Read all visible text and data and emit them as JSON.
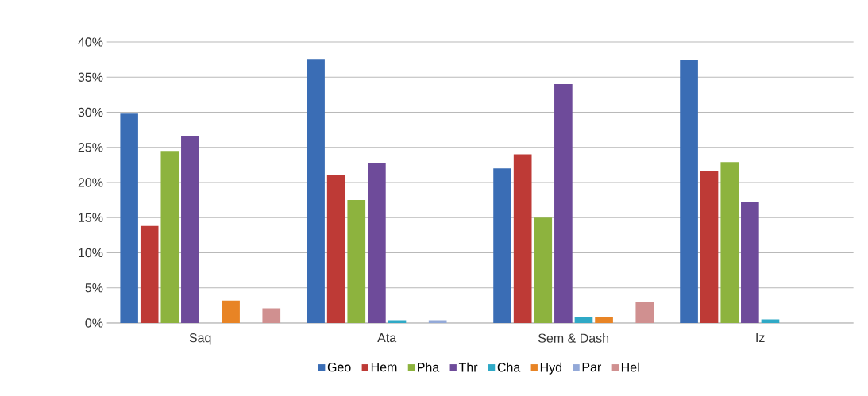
{
  "chart_data": {
    "type": "bar",
    "categories": [
      "Saq",
      "Ata",
      "Sem & Dash",
      "Iz"
    ],
    "series": [
      {
        "name": "Geo",
        "color": "#3a6db5",
        "values": [
          29.8,
          37.6,
          22.0,
          37.5
        ]
      },
      {
        "name": "Hem",
        "color": "#be3a36",
        "values": [
          13.8,
          21.1,
          24.0,
          21.7
        ]
      },
      {
        "name": "Pha",
        "color": "#8db33e",
        "values": [
          24.5,
          17.5,
          15.0,
          22.9
        ]
      },
      {
        "name": "Thr",
        "color": "#6e4b9a",
        "values": [
          26.6,
          22.7,
          34.0,
          17.2
        ]
      },
      {
        "name": "Cha",
        "color": "#2fa9c6",
        "values": [
          0,
          0.4,
          0.9,
          0.5
        ]
      },
      {
        "name": "Hyd",
        "color": "#e88425",
        "values": [
          3.2,
          0,
          0.9,
          0
        ]
      },
      {
        "name": "Par",
        "color": "#93a9d8",
        "values": [
          0,
          0.4,
          0,
          0
        ]
      },
      {
        "name": "Hel",
        "color": "#d09090",
        "values": [
          2.1,
          0,
          3.0,
          0
        ]
      }
    ],
    "ylim": [
      0,
      40
    ],
    "yticks": [
      {
        "value": 0,
        "label": "0%"
      },
      {
        "value": 5,
        "label": "5%"
      },
      {
        "value": 10,
        "label": "10%"
      },
      {
        "value": 15,
        "label": "15%"
      },
      {
        "value": 20,
        "label": "20%"
      },
      {
        "value": 25,
        "label": "25%"
      },
      {
        "value": 30,
        "label": "30%"
      },
      {
        "value": 35,
        "label": "35%"
      },
      {
        "value": 40,
        "label": "40%"
      }
    ],
    "grid": "y",
    "legend": "bottom"
  }
}
